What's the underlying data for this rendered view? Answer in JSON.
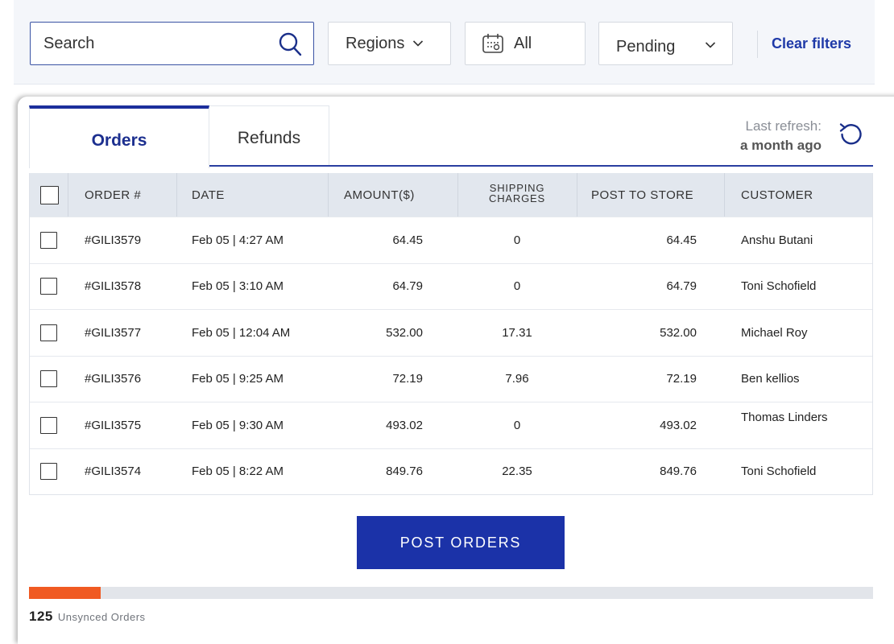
{
  "filters": {
    "search_placeholder": "Search",
    "regions_label": "Regions",
    "date_label": "All",
    "status_label": "Pending",
    "clear_label": "Clear filters"
  },
  "tabs": [
    {
      "label": "Orders",
      "active": true
    },
    {
      "label": "Refunds",
      "active": false
    }
  ],
  "refresh": {
    "label": "Last refresh:",
    "value": "a month ago"
  },
  "table": {
    "headers": {
      "order": "ORDER #",
      "date": "DATE",
      "amount": "AMOUNT($)",
      "shipping_line1": "SHIPPING",
      "shipping_line2": "CHARGES",
      "post": "POST TO STORE",
      "customer": "CUSTOMER"
    },
    "rows": [
      {
        "order": "#GILI3579",
        "date": "Feb 05 | 4:27 AM",
        "amount": "64.45",
        "shipping": "0",
        "post": "64.45",
        "customer": "Anshu Butani"
      },
      {
        "order": "#GILI3578",
        "date": "Feb 05 | 3:10 AM",
        "amount": "64.79",
        "shipping": "0",
        "post": "64.79",
        "customer": "Toni Schofield"
      },
      {
        "order": "#GILI3577",
        "date": "Feb 05 | 12:04 AM",
        "amount": "532.00",
        "shipping": "17.31",
        "post": "532.00",
        "customer": "Michael Roy"
      },
      {
        "order": "#GILI3576",
        "date": "Feb 05 | 9:25 AM",
        "amount": "72.19",
        "shipping": "7.96",
        "post": "72.19",
        "customer": "Ben kellios"
      },
      {
        "order": "#GILI3575",
        "date": "Feb 05 | 9:30 AM",
        "amount": "493.02",
        "shipping": "0",
        "post": "493.02",
        "customer": "Thomas Linders"
      },
      {
        "order": "#GILI3574",
        "date": "Feb 05 | 8:22 AM",
        "amount": "849.76",
        "shipping": "22.35",
        "post": "849.76",
        "customer": "Toni Schofield"
      }
    ]
  },
  "footer": {
    "post_button": "POST ORDERS",
    "unsynced_count": "125",
    "unsynced_label": "Unsynced Orders",
    "progress_fraction": 0.085
  },
  "colors": {
    "accent": "#1b32a8",
    "progress": "#f05a22",
    "header_bg": "#e2e7ee"
  }
}
